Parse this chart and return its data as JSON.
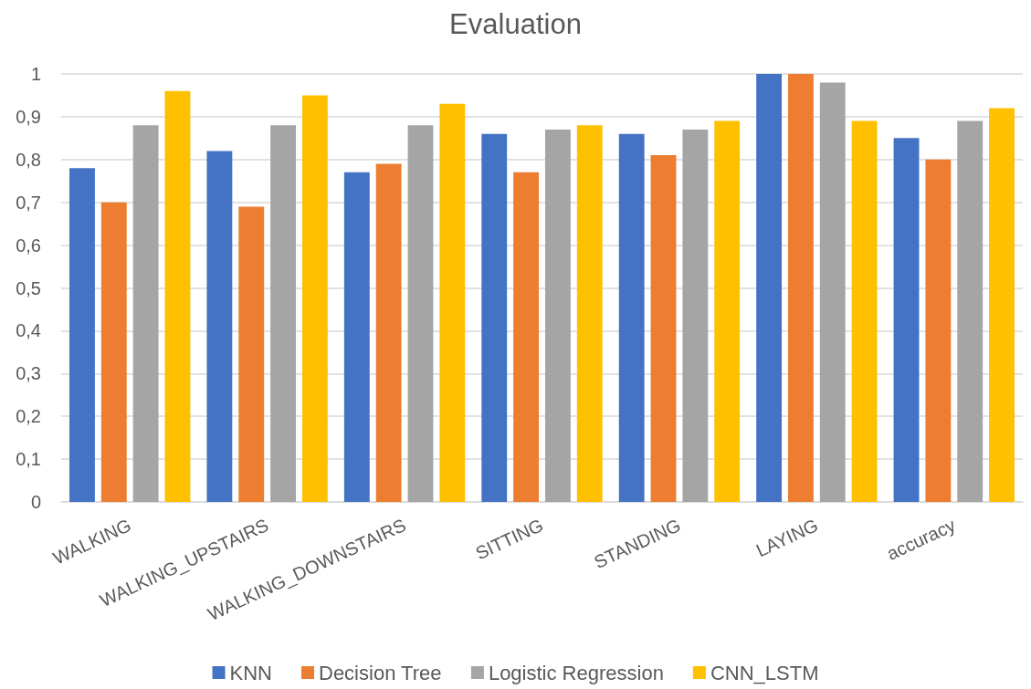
{
  "chart_data": {
    "type": "bar",
    "title": "Evaluation",
    "categories": [
      "WALKING",
      "WALKING_UPSTAIRS",
      "WALKING_DOWNSTAIRS",
      "SITTING",
      "STANDING",
      "LAYING",
      "accuracy"
    ],
    "series": [
      {
        "name": "KNN",
        "color": "#4472c4",
        "values": [
          0.78,
          0.82,
          0.77,
          0.86,
          0.86,
          1.0,
          0.85
        ]
      },
      {
        "name": "Decision Tree",
        "color": "#ed7d31",
        "values": [
          0.7,
          0.69,
          0.79,
          0.77,
          0.81,
          1.0,
          0.8
        ]
      },
      {
        "name": "Logistic Regression",
        "color": "#a5a5a5",
        "values": [
          0.88,
          0.88,
          0.88,
          0.87,
          0.87,
          0.98,
          0.89
        ]
      },
      {
        "name": "CNN_LSTM",
        "color": "#ffc000",
        "values": [
          0.96,
          0.95,
          0.93,
          0.88,
          0.89,
          0.89,
          0.92
        ]
      }
    ],
    "ylim": [
      0,
      1
    ],
    "yticks": [
      0,
      {
        "value": 0.1,
        "label": "0,1"
      },
      {
        "value": 0.2,
        "label": "0,2"
      },
      {
        "value": 0.3,
        "label": "0,3"
      },
      {
        "value": 0.4,
        "label": "0,4"
      },
      {
        "value": 0.5,
        "label": "0,5"
      },
      {
        "value": 0.6,
        "label": "0,6"
      },
      {
        "value": 0.7,
        "label": "0,7"
      },
      {
        "value": 0.8,
        "label": "0,8"
      },
      {
        "value": 0.9,
        "label": "0,9"
      },
      1
    ],
    "grid": "y",
    "legend": "bottom"
  }
}
